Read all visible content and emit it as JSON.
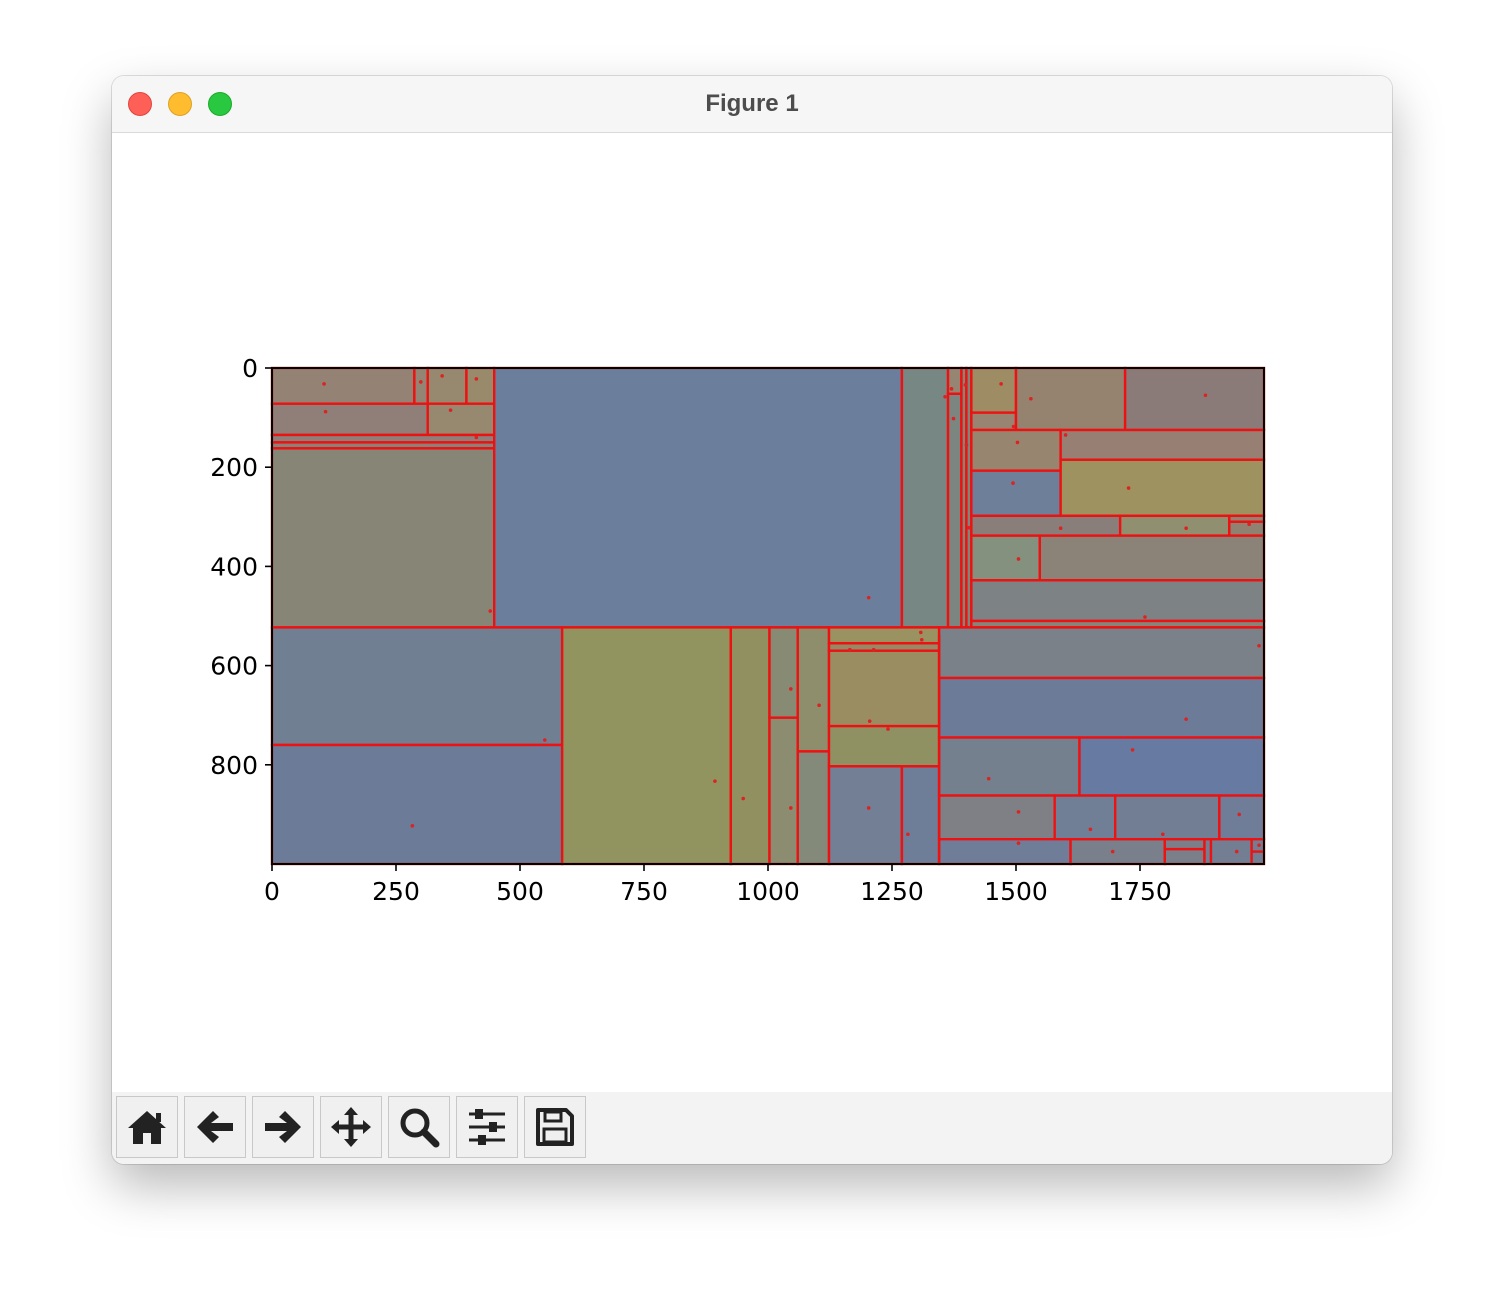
{
  "window": {
    "title": "Figure 1"
  },
  "toolbar": {
    "buttons": [
      {
        "name": "home-button",
        "icon": "home-icon"
      },
      {
        "name": "back-button",
        "icon": "arrow-left-icon"
      },
      {
        "name": "forward-button",
        "icon": "arrow-right-icon"
      },
      {
        "name": "pan-button",
        "icon": "move-icon"
      },
      {
        "name": "zoom-button",
        "icon": "magnifier-icon"
      },
      {
        "name": "configure-subplots-button",
        "icon": "sliders-icon"
      },
      {
        "name": "save-button",
        "icon": "floppy-disk-icon"
      }
    ]
  },
  "chart_data": {
    "type": "heatmap",
    "title": "",
    "xlabel": "",
    "ylabel": "",
    "xlim": [
      0,
      2000
    ],
    "ylim": [
      1000,
      0
    ],
    "y_inverted": true,
    "xticks": [
      0,
      250,
      500,
      750,
      1000,
      1250,
      1500,
      1750
    ],
    "yticks": [
      0,
      200,
      400,
      600,
      800
    ],
    "grid": false,
    "edge_color": "#ee1111",
    "point_color": "#dd2222",
    "cells": [
      {
        "x0": 0,
        "y0": 0,
        "x1": 287,
        "y1": 72,
        "color": "#948274"
      },
      {
        "x0": 287,
        "y0": 0,
        "x1": 314,
        "y1": 72,
        "color": "#938474"
      },
      {
        "x0": 314,
        "y0": 0,
        "x1": 392,
        "y1": 72,
        "color": "#968970"
      },
      {
        "x0": 392,
        "y0": 0,
        "x1": 448,
        "y1": 72,
        "color": "#998a6c"
      },
      {
        "x0": 0,
        "y0": 72,
        "x1": 314,
        "y1": 135,
        "color": "#8f7f78"
      },
      {
        "x0": 314,
        "y0": 72,
        "x1": 448,
        "y1": 135,
        "color": "#968970"
      },
      {
        "x0": 0,
        "y0": 135,
        "x1": 448,
        "y1": 150,
        "color": "#8d7f7a"
      },
      {
        "x0": 0,
        "y0": 150,
        "x1": 448,
        "y1": 162,
        "color": "#8a8178"
      },
      {
        "x0": 0,
        "y0": 162,
        "x1": 448,
        "y1": 523,
        "color": "#878676"
      },
      {
        "x0": 448,
        "y0": 0,
        "x1": 1270,
        "y1": 523,
        "color": "#6b7f9c"
      },
      {
        "x0": 1270,
        "y0": 0,
        "x1": 1363,
        "y1": 523,
        "color": "#778784"
      },
      {
        "x0": 1363,
        "y0": 0,
        "x1": 1390,
        "y1": 52,
        "color": "#968572"
      },
      {
        "x0": 1363,
        "y0": 52,
        "x1": 1390,
        "y1": 523,
        "color": "#7d8580"
      },
      {
        "x0": 1390,
        "y0": 0,
        "x1": 1400,
        "y1": 523,
        "color": "#858676"
      },
      {
        "x0": 1400,
        "y0": 0,
        "x1": 1410,
        "y1": 523,
        "color": "#7f8577"
      },
      {
        "x0": 1410,
        "y0": 0,
        "x1": 1500,
        "y1": 90,
        "color": "#9d8c64"
      },
      {
        "x0": 1410,
        "y0": 90,
        "x1": 1500,
        "y1": 125,
        "color": "#988470"
      },
      {
        "x0": 1500,
        "y0": 0,
        "x1": 1720,
        "y1": 125,
        "color": "#95826f"
      },
      {
        "x0": 1720,
        "y0": 0,
        "x1": 2000,
        "y1": 125,
        "color": "#8b7b78"
      },
      {
        "x0": 1410,
        "y0": 125,
        "x1": 1590,
        "y1": 207,
        "color": "#988570"
      },
      {
        "x0": 1590,
        "y0": 125,
        "x1": 2000,
        "y1": 185,
        "color": "#977f74"
      },
      {
        "x0": 1410,
        "y0": 207,
        "x1": 1590,
        "y1": 298,
        "color": "#6e7f9a"
      },
      {
        "x0": 1590,
        "y0": 185,
        "x1": 2000,
        "y1": 298,
        "color": "#9d9260"
      },
      {
        "x0": 1410,
        "y0": 298,
        "x1": 1710,
        "y1": 338,
        "color": "#8a7e7a"
      },
      {
        "x0": 1710,
        "y0": 298,
        "x1": 1930,
        "y1": 338,
        "color": "#909070"
      },
      {
        "x0": 1930,
        "y0": 298,
        "x1": 2000,
        "y1": 310,
        "color": "#948272"
      },
      {
        "x0": 1930,
        "y0": 310,
        "x1": 2000,
        "y1": 338,
        "color": "#8f8270"
      },
      {
        "x0": 1410,
        "y0": 338,
        "x1": 1548,
        "y1": 428,
        "color": "#84917e"
      },
      {
        "x0": 1548,
        "y0": 338,
        "x1": 2000,
        "y1": 428,
        "color": "#8b8278"
      },
      {
        "x0": 1410,
        "y0": 428,
        "x1": 2000,
        "y1": 510,
        "color": "#7d8285"
      },
      {
        "x0": 1410,
        "y0": 510,
        "x1": 2000,
        "y1": 523,
        "color": "#87857a"
      },
      {
        "x0": 0,
        "y0": 523,
        "x1": 585,
        "y1": 760,
        "color": "#717f92"
      },
      {
        "x0": 0,
        "y0": 760,
        "x1": 585,
        "y1": 1000,
        "color": "#6b7b98"
      },
      {
        "x0": 585,
        "y0": 523,
        "x1": 925,
        "y1": 1000,
        "color": "#929460"
      },
      {
        "x0": 925,
        "y0": 523,
        "x1": 1003,
        "y1": 1000,
        "color": "#909060"
      },
      {
        "x0": 1003,
        "y0": 523,
        "x1": 1060,
        "y1": 705,
        "color": "#888b74"
      },
      {
        "x0": 1003,
        "y0": 705,
        "x1": 1060,
        "y1": 1000,
        "color": "#8c8c70"
      },
      {
        "x0": 1060,
        "y0": 523,
        "x1": 1123,
        "y1": 773,
        "color": "#8e8e6c"
      },
      {
        "x0": 1060,
        "y0": 773,
        "x1": 1123,
        "y1": 1000,
        "color": "#838a7a"
      },
      {
        "x0": 1123,
        "y0": 523,
        "x1": 1345,
        "y1": 555,
        "color": "#9a9260"
      },
      {
        "x0": 1123,
        "y0": 555,
        "x1": 1345,
        "y1": 570,
        "color": "#968a66"
      },
      {
        "x0": 1123,
        "y0": 570,
        "x1": 1345,
        "y1": 722,
        "color": "#9b8d62"
      },
      {
        "x0": 1123,
        "y0": 722,
        "x1": 1345,
        "y1": 803,
        "color": "#909162"
      },
      {
        "x0": 1123,
        "y0": 803,
        "x1": 1270,
        "y1": 1000,
        "color": "#737f94"
      },
      {
        "x0": 1270,
        "y0": 803,
        "x1": 1345,
        "y1": 1000,
        "color": "#6e7e98"
      },
      {
        "x0": 1345,
        "y0": 523,
        "x1": 2000,
        "y1": 625,
        "color": "#7a8188"
      },
      {
        "x0": 1345,
        "y0": 625,
        "x1": 2000,
        "y1": 745,
        "color": "#6c7c98"
      },
      {
        "x0": 1345,
        "y0": 745,
        "x1": 1628,
        "y1": 862,
        "color": "#75808e"
      },
      {
        "x0": 1628,
        "y0": 745,
        "x1": 2000,
        "y1": 862,
        "color": "#677aa2"
      },
      {
        "x0": 1345,
        "y0": 862,
        "x1": 1578,
        "y1": 950,
        "color": "#7f7f86"
      },
      {
        "x0": 1578,
        "y0": 862,
        "x1": 1700,
        "y1": 950,
        "color": "#707e96"
      },
      {
        "x0": 1700,
        "y0": 862,
        "x1": 1910,
        "y1": 950,
        "color": "#727e94"
      },
      {
        "x0": 1910,
        "y0": 862,
        "x1": 2000,
        "y1": 950,
        "color": "#6f7d98"
      },
      {
        "x0": 1345,
        "y0": 950,
        "x1": 1610,
        "y1": 1000,
        "color": "#6f7d98"
      },
      {
        "x0": 1610,
        "y0": 950,
        "x1": 1800,
        "y1": 1000,
        "color": "#7a7f8c"
      },
      {
        "x0": 1800,
        "y0": 950,
        "x1": 1880,
        "y1": 1000,
        "color": "#7b7f8a"
      },
      {
        "x0": 1880,
        "y0": 950,
        "x1": 2000,
        "y1": 1000,
        "color": "#737e92"
      }
    ],
    "extra_lines": [
      {
        "x0": 1345,
        "y0": 539,
        "x1": 1345,
        "y1": 1000
      },
      {
        "x0": 1800,
        "y0": 970,
        "x1": 1880,
        "y1": 970
      },
      {
        "x0": 1893,
        "y0": 950,
        "x1": 1893,
        "y1": 1000
      },
      {
        "x0": 1975,
        "y0": 950,
        "x1": 1975,
        "y1": 1000
      },
      {
        "x0": 1975,
        "y0": 975,
        "x1": 2000,
        "y1": 975
      },
      {
        "x0": 1363,
        "y0": 52,
        "x1": 1390,
        "y1": 52
      }
    ],
    "points": [
      {
        "x": 105,
        "y": 32
      },
      {
        "x": 108,
        "y": 88
      },
      {
        "x": 300,
        "y": 28
      },
      {
        "x": 343,
        "y": 16
      },
      {
        "x": 412,
        "y": 22
      },
      {
        "x": 360,
        "y": 85
      },
      {
        "x": 412,
        "y": 140
      },
      {
        "x": 440,
        "y": 490
      },
      {
        "x": 1203,
        "y": 463
      },
      {
        "x": 1357,
        "y": 58
      },
      {
        "x": 1370,
        "y": 42
      },
      {
        "x": 1374,
        "y": 102
      },
      {
        "x": 1398,
        "y": 34
      },
      {
        "x": 1405,
        "y": 322
      },
      {
        "x": 1400,
        "y": 155
      },
      {
        "x": 1470,
        "y": 32
      },
      {
        "x": 1530,
        "y": 62
      },
      {
        "x": 1495,
        "y": 118
      },
      {
        "x": 1503,
        "y": 150
      },
      {
        "x": 1600,
        "y": 135
      },
      {
        "x": 1494,
        "y": 232
      },
      {
        "x": 1727,
        "y": 242
      },
      {
        "x": 1882,
        "y": 55
      },
      {
        "x": 1590,
        "y": 323
      },
      {
        "x": 1843,
        "y": 323
      },
      {
        "x": 1970,
        "y": 315
      },
      {
        "x": 1505,
        "y": 385
      },
      {
        "x": 1760,
        "y": 502
      },
      {
        "x": 1990,
        "y": 560
      },
      {
        "x": 1308,
        "y": 533
      },
      {
        "x": 1310,
        "y": 548
      },
      {
        "x": 1165,
        "y": 568
      },
      {
        "x": 1213,
        "y": 568
      },
      {
        "x": 1046,
        "y": 647
      },
      {
        "x": 1103,
        "y": 680
      },
      {
        "x": 1205,
        "y": 712
      },
      {
        "x": 1242,
        "y": 728
      },
      {
        "x": 1843,
        "y": 708
      },
      {
        "x": 550,
        "y": 750
      },
      {
        "x": 1735,
        "y": 770
      },
      {
        "x": 1445,
        "y": 828
      },
      {
        "x": 893,
        "y": 833
      },
      {
        "x": 950,
        "y": 868
      },
      {
        "x": 1046,
        "y": 887
      },
      {
        "x": 1203,
        "y": 887
      },
      {
        "x": 1282,
        "y": 940
      },
      {
        "x": 1505,
        "y": 895
      },
      {
        "x": 1650,
        "y": 930
      },
      {
        "x": 1796,
        "y": 940
      },
      {
        "x": 1950,
        "y": 900
      },
      {
        "x": 283,
        "y": 923
      },
      {
        "x": 1505,
        "y": 958
      },
      {
        "x": 1695,
        "y": 975
      },
      {
        "x": 1945,
        "y": 975
      },
      {
        "x": 1990,
        "y": 962
      }
    ]
  }
}
